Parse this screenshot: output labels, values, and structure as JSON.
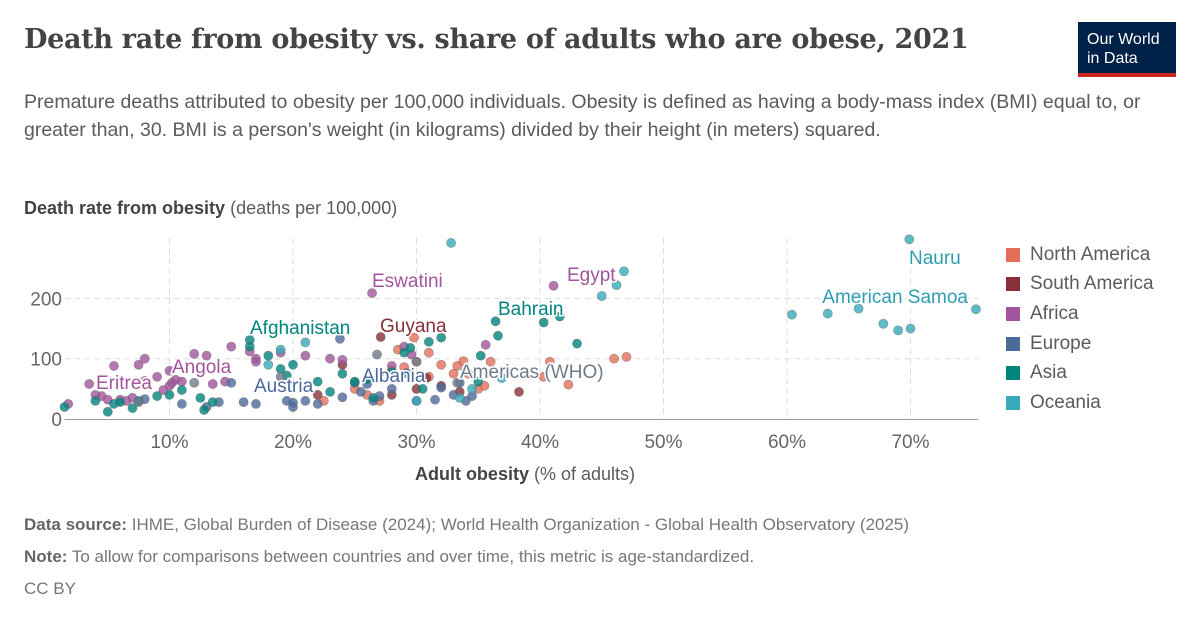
{
  "title": "Death rate from obesity vs. share of adults who are obese, 2021",
  "logo": "Our World in Data",
  "subtitle": "Premature deaths attributed to obesity per 100,000 individuals. Obesity is defined as having a body-mass index (BMI) equal to, or greater than, 30. BMI is a person's weight (in kilograms) divided by their height (in meters) squared.",
  "footer": {
    "source_label": "Data source:",
    "source": "IHME, Global Burden of Disease (2024); World Health Organization - Global Health Observatory (2025)",
    "note_label": "Note:",
    "note": "To allow for comparisons between countries and over time, this metric is age-standardized.",
    "license": "CC BY"
  },
  "chart_data": {
    "type": "scatter",
    "ylabel_bold": "Death rate from obesity",
    "ylabel_unit": "(deaths per 100,000)",
    "xlabel_bold": "Adult obesity",
    "xlabel_unit": "(% of adults)",
    "xlim": [
      1.5,
      75.5
    ],
    "ylim": [
      0,
      300
    ],
    "x_ticks": [
      "10%",
      "20%",
      "30%",
      "40%",
      "50%",
      "60%",
      "70%"
    ],
    "x_tick_values": [
      10,
      20,
      30,
      40,
      50,
      60,
      70
    ],
    "y_ticks": [
      "0",
      "100",
      "200"
    ],
    "y_tick_values": [
      0,
      100,
      200
    ],
    "grid": true,
    "legend_position": "right",
    "series": [
      {
        "name": "North America",
        "color": "#E56E5A",
        "points": [
          [
            22.5,
            30
          ],
          [
            25,
            50
          ],
          [
            26,
            40
          ],
          [
            27,
            30
          ],
          [
            28,
            80
          ],
          [
            28.5,
            115
          ],
          [
            29,
            86
          ],
          [
            30,
            95
          ],
          [
            31,
            110
          ],
          [
            31,
            70
          ],
          [
            32,
            90
          ],
          [
            33,
            75
          ],
          [
            33.3,
            88
          ],
          [
            33.8,
            96
          ],
          [
            34.2,
            75
          ],
          [
            35,
            50
          ],
          [
            35.5,
            55
          ],
          [
            36,
            95
          ],
          [
            40.3,
            70
          ],
          [
            40.8,
            95
          ],
          [
            42.3,
            57
          ],
          [
            46,
            100
          ],
          [
            47,
            103
          ],
          [
            29.8,
            135
          ]
        ]
      },
      {
        "name": "South America",
        "color": "#883039",
        "points": [
          [
            22,
            40
          ],
          [
            24,
            90
          ],
          [
            27.1,
            136
          ],
          [
            28,
            40
          ],
          [
            30,
            50
          ],
          [
            32,
            55
          ],
          [
            33.5,
            45
          ],
          [
            38.3,
            45
          ],
          [
            30.8,
            68
          ]
        ]
      },
      {
        "name": "Africa",
        "color": "#A2559C",
        "points": [
          [
            1.8,
            25
          ],
          [
            3.5,
            58
          ],
          [
            4,
            40
          ],
          [
            4.5,
            38
          ],
          [
            5,
            32
          ],
          [
            5.5,
            88
          ],
          [
            6,
            32
          ],
          [
            6.5,
            30
          ],
          [
            7,
            35
          ],
          [
            7.5,
            90
          ],
          [
            8,
            100
          ],
          [
            8,
            63
          ],
          [
            9,
            70
          ],
          [
            9.5,
            48
          ],
          [
            10,
            80
          ],
          [
            10,
            55
          ],
          [
            10.2,
            60
          ],
          [
            10.5,
            65
          ],
          [
            11,
            62
          ],
          [
            12,
            108
          ],
          [
            13,
            105
          ],
          [
            13.5,
            58
          ],
          [
            14,
            85
          ],
          [
            14.5,
            62
          ],
          [
            15,
            120
          ],
          [
            16.5,
            112
          ],
          [
            17,
            100
          ],
          [
            17,
            95
          ],
          [
            19,
            110
          ],
          [
            21,
            105
          ],
          [
            23,
            100
          ],
          [
            24,
            98
          ],
          [
            26.4,
            209
          ],
          [
            28,
            88
          ],
          [
            29,
            120
          ],
          [
            35.6,
            123
          ],
          [
            41.1,
            221
          ],
          [
            29.6,
            107
          ]
        ]
      },
      {
        "name": "Europe",
        "color": "#4C6A9C",
        "points": [
          [
            8,
            33
          ],
          [
            11,
            25
          ],
          [
            13,
            20
          ],
          [
            14,
            28
          ],
          [
            15,
            60
          ],
          [
            16,
            28
          ],
          [
            17,
            25
          ],
          [
            19.5,
            30
          ],
          [
            20,
            20
          ],
          [
            21,
            30
          ],
          [
            22,
            25
          ],
          [
            24,
            36
          ],
          [
            25,
            60
          ],
          [
            25.5,
            45
          ],
          [
            26,
            58
          ],
          [
            26.5,
            30
          ],
          [
            27,
            38
          ],
          [
            28,
            50
          ],
          [
            29.2,
            76
          ],
          [
            30,
            30
          ],
          [
            31.5,
            32
          ],
          [
            32,
            52
          ],
          [
            33,
            40
          ],
          [
            33.5,
            60
          ],
          [
            34,
            30
          ],
          [
            34.5,
            38
          ],
          [
            23.8,
            133
          ],
          [
            20,
            27
          ]
        ]
      },
      {
        "name": "Asia",
        "color": "#00847E",
        "points": [
          [
            1.5,
            20
          ],
          [
            4,
            30
          ],
          [
            5,
            12
          ],
          [
            5.5,
            25
          ],
          [
            6,
            28
          ],
          [
            7,
            18
          ],
          [
            7.5,
            30
          ],
          [
            9,
            38
          ],
          [
            10,
            40
          ],
          [
            11,
            48
          ],
          [
            12.5,
            35
          ],
          [
            12.8,
            15
          ],
          [
            13.5,
            28
          ],
          [
            16.5,
            131
          ],
          [
            16.5,
            120
          ],
          [
            18,
            105
          ],
          [
            19.5,
            72
          ],
          [
            19,
            83
          ],
          [
            20,
            90
          ],
          [
            22,
            62
          ],
          [
            23,
            45
          ],
          [
            24,
            75
          ],
          [
            25,
            62
          ],
          [
            26,
            66
          ],
          [
            27,
            75
          ],
          [
            28,
            78
          ],
          [
            29,
            110
          ],
          [
            29.5,
            118
          ],
          [
            31,
            128
          ],
          [
            32,
            135
          ],
          [
            34,
            80
          ],
          [
            35,
            62
          ],
          [
            35.2,
            105
          ],
          [
            36.4,
            162
          ],
          [
            36.6,
            138
          ],
          [
            40.3,
            160
          ],
          [
            43,
            125
          ],
          [
            30.5,
            50
          ],
          [
            26.5,
            35
          ],
          [
            41.6,
            170
          ]
        ]
      },
      {
        "name": "Oceania",
        "color": "#38AABA",
        "points": [
          [
            32.8,
            292
          ],
          [
            19,
            115
          ],
          [
            21,
            127
          ],
          [
            18,
            90
          ],
          [
            30,
            30
          ],
          [
            33.5,
            35
          ],
          [
            34.5,
            50
          ],
          [
            45,
            204
          ],
          [
            46.2,
            222
          ],
          [
            46.8,
            245
          ],
          [
            60.4,
            173
          ],
          [
            63.3,
            175
          ],
          [
            65.8,
            183
          ],
          [
            67.8,
            158
          ],
          [
            69,
            147
          ],
          [
            69.9,
            298
          ],
          [
            70,
            150
          ],
          [
            75.3,
            182
          ],
          [
            36.9,
            68
          ]
        ]
      },
      {
        "color": "#6D7B8A",
        "points": [
          [
            7.5,
            28
          ],
          [
            12,
            60
          ],
          [
            19,
            70
          ],
          [
            26.8,
            107
          ],
          [
            33.3,
            60
          ],
          [
            30,
            95
          ]
        ]
      }
    ],
    "labels": [
      {
        "text": "Nauru",
        "color": "#2E9DB0"
      },
      {
        "text": "American Samoa",
        "color": "#2E9DB0"
      },
      {
        "text": "Eswatini",
        "color": "#A2559C"
      },
      {
        "text": "Egypt",
        "color": "#A2559C"
      },
      {
        "text": "Bahrain",
        "color": "#00847E"
      },
      {
        "text": "Guyana",
        "color": "#883039"
      },
      {
        "text": "Afghanistan",
        "color": "#00847E"
      },
      {
        "text": "Angola",
        "color": "#A2559C"
      },
      {
        "text": "Eritrea",
        "color": "#A2559C"
      },
      {
        "text": "Austria",
        "color": "#4C6A9C"
      },
      {
        "text": "Albania",
        "color": "#4C6A9C"
      },
      {
        "text": "Americas (WHO)",
        "color": "#6D7B8A"
      }
    ]
  }
}
